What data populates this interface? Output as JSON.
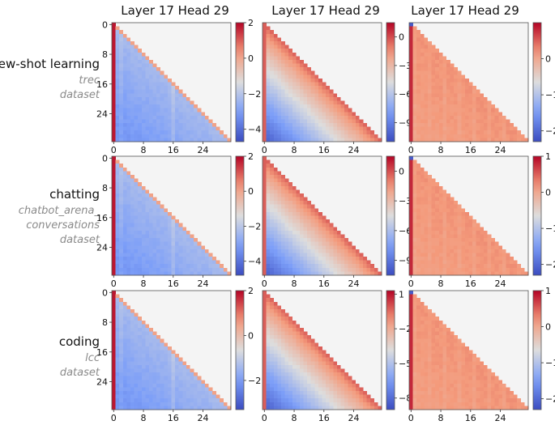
{
  "column_titles": [
    "Layer 17 Head 29",
    "Layer 17 Head 29",
    "Layer 17 Head 29"
  ],
  "rows": [
    {
      "title": "few-shot learning",
      "subtitle_lines": [
        "trec",
        "dataset"
      ]
    },
    {
      "title": "chatting",
      "subtitle_lines": [
        "chatbot_arena_",
        "conversations",
        "dataset"
      ]
    },
    {
      "title": "coding",
      "subtitle_lines": [
        "lcc",
        "dataset"
      ]
    }
  ],
  "chart_data": [
    {
      "type": "heatmap",
      "row": 0,
      "col": 0,
      "pattern": "blue",
      "size": 32,
      "x_ticks": [
        0,
        8,
        16,
        24
      ],
      "y_ticks": [
        0,
        8,
        16,
        24
      ],
      "colorbar": {
        "min": -4.7,
        "max": 2.0,
        "ticks": [
          2,
          0,
          -2,
          -4
        ]
      }
    },
    {
      "type": "heatmap",
      "row": 0,
      "col": 1,
      "pattern": "gradient",
      "size": 32,
      "x_ticks": [
        0,
        8,
        16,
        24
      ],
      "y_ticks": [],
      "colorbar": {
        "min": -11.0,
        "max": 1.5,
        "ticks": [
          0,
          -3,
          -6,
          -9
        ]
      }
    },
    {
      "type": "heatmap",
      "row": 0,
      "col": 2,
      "pattern": "warm",
      "size": 32,
      "x_ticks": [
        0,
        8,
        16,
        24
      ],
      "y_ticks": [],
      "colorbar": {
        "min": -2.3,
        "max": 1.0,
        "ticks": [
          0,
          -1,
          -2
        ]
      }
    },
    {
      "type": "heatmap",
      "row": 1,
      "col": 0,
      "pattern": "blue",
      "size": 32,
      "x_ticks": [
        0,
        8,
        16,
        24
      ],
      "y_ticks": [
        0,
        8,
        16,
        24
      ],
      "colorbar": {
        "min": -4.8,
        "max": 2.0,
        "ticks": [
          2,
          0,
          -2,
          -4
        ]
      }
    },
    {
      "type": "heatmap",
      "row": 1,
      "col": 1,
      "pattern": "gradient",
      "size": 32,
      "x_ticks": [
        0,
        8,
        16,
        24
      ],
      "y_ticks": [],
      "colorbar": {
        "min": -10.5,
        "max": 1.5,
        "ticks": [
          0,
          -3,
          -6,
          -9
        ]
      }
    },
    {
      "type": "heatmap",
      "row": 1,
      "col": 2,
      "pattern": "warm",
      "size": 32,
      "x_ticks": [
        0,
        8,
        16,
        24
      ],
      "y_ticks": [],
      "colorbar": {
        "min": -2.3,
        "max": 1.0,
        "ticks": [
          1,
          0,
          -1,
          -2
        ]
      }
    },
    {
      "type": "heatmap",
      "row": 2,
      "col": 0,
      "pattern": "blue",
      "size": 32,
      "x_ticks": [
        0,
        8,
        16,
        24
      ],
      "y_ticks": [
        0,
        8,
        16,
        24
      ],
      "colorbar": {
        "min": -3.3,
        "max": 2.0,
        "ticks": [
          2,
          0,
          -2
        ]
      }
    },
    {
      "type": "heatmap",
      "row": 2,
      "col": 1,
      "pattern": "gradient",
      "size": 32,
      "x_ticks": [
        0,
        8,
        16,
        24
      ],
      "y_ticks": [],
      "colorbar": {
        "min": -9.0,
        "max": 1.3,
        "ticks": [
          1,
          -2,
          -5,
          -8
        ]
      }
    },
    {
      "type": "heatmap",
      "row": 2,
      "col": 2,
      "pattern": "warm",
      "size": 32,
      "x_ticks": [
        0,
        8,
        16,
        24
      ],
      "y_ticks": [],
      "colorbar": {
        "min": -2.3,
        "max": 1.0,
        "ticks": [
          1,
          0,
          -1,
          -2
        ]
      }
    }
  ],
  "colors": {
    "cmap": "coolwarm",
    "masked": "#f4f4f4",
    "frame": "#555555"
  }
}
